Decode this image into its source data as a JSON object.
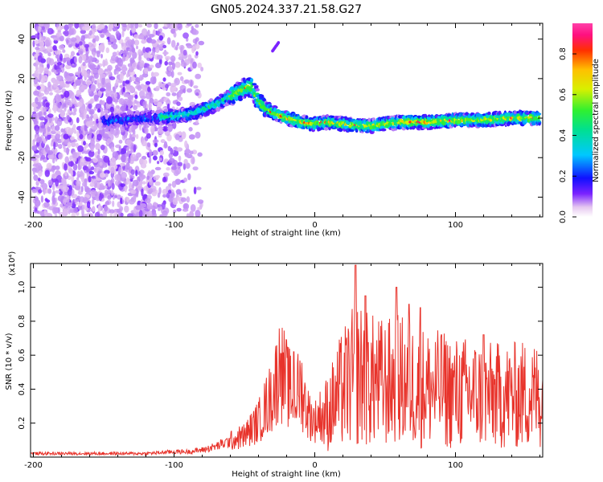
{
  "title": "GN05.2024.337.21.58.G27",
  "top_panel": {
    "xlabel": "Height of straight line (km)",
    "ylabel": "Frequency (Hz)",
    "colorbar_label": "Normalized spectral amplitude"
  },
  "bottom_panel": {
    "xlabel": "Height of straight line (km)",
    "ylabel": "SNR (10 * v/v)",
    "scale_label": "(x10⁴)"
  },
  "chart_data": [
    {
      "type": "heatmap",
      "title": "GN05.2024.337.21.58.G27",
      "xlabel": "Height of straight line (km)",
      "ylabel": "Frequency (Hz)",
      "xlim": [
        -202,
        162
      ],
      "ylim": [
        -50,
        48
      ],
      "xticks": [
        -200,
        -100,
        0,
        100
      ],
      "yticks": [
        -40,
        -20,
        0,
        20,
        40
      ],
      "ridge": {
        "x": [
          -150,
          -140,
          -120,
          -100,
          -90,
          -80,
          -70,
          -60,
          -50,
          -45,
          -40,
          -35,
          -30,
          -20,
          -10,
          0,
          10,
          20,
          40,
          60,
          80,
          100,
          120,
          140,
          160
        ],
        "y": [
          -2,
          -1,
          0,
          1,
          2,
          4,
          7,
          11,
          15,
          16,
          9,
          5,
          3,
          0,
          -2,
          -3,
          -2,
          -3,
          -4,
          -2,
          -2,
          -1,
          -1,
          0,
          0
        ]
      },
      "colorbar": {
        "min": 0.0,
        "max": 0.95,
        "ticks": [
          0.0,
          0.2,
          0.4,
          0.6,
          0.8
        ]
      }
    },
    {
      "type": "line",
      "xlabel": "Height of straight line (km)",
      "ylabel": "SNR (10 * v/v)",
      "xlim": [
        -202,
        162
      ],
      "ylim": [
        0,
        1.14
      ],
      "xticks": [
        -200,
        -100,
        0,
        100
      ],
      "yticks": [
        0.2,
        0.4,
        0.6,
        0.8,
        1.0
      ],
      "y_multiplier": "x10^4",
      "series": [
        {
          "color": "#e8332b",
          "x": [
            -202,
            -180,
            -160,
            -140,
            -120,
            -100,
            -90,
            -80,
            -70,
            -60,
            -50,
            -40,
            -35,
            -30,
            -25,
            -20,
            -15,
            -10,
            -5,
            0,
            10,
            20,
            30,
            40,
            50,
            60,
            70,
            80,
            90,
            100,
            110,
            120,
            130,
            140,
            150,
            162
          ],
          "values": [
            0.02,
            0.02,
            0.02,
            0.02,
            0.02,
            0.03,
            0.03,
            0.04,
            0.06,
            0.09,
            0.12,
            0.2,
            0.28,
            0.35,
            0.5,
            0.42,
            0.32,
            0.4,
            0.25,
            0.2,
            0.3,
            0.45,
            0.55,
            0.5,
            0.48,
            0.5,
            0.47,
            0.45,
            0.44,
            0.42,
            0.42,
            0.4,
            0.4,
            0.4,
            0.41,
            0.4
          ],
          "peaks": [
            {
              "x": -24,
              "y": 0.61
            },
            {
              "x": -15,
              "y": 0.62
            },
            {
              "x": 29,
              "y": 1.13
            },
            {
              "x": 36,
              "y": 0.95
            },
            {
              "x": 58,
              "y": 1.0
            },
            {
              "x": 67,
              "y": 0.9
            },
            {
              "x": 75,
              "y": 0.88
            },
            {
              "x": 90,
              "y": 0.72
            },
            {
              "x": 120,
              "y": 0.72
            }
          ]
        }
      ]
    }
  ]
}
